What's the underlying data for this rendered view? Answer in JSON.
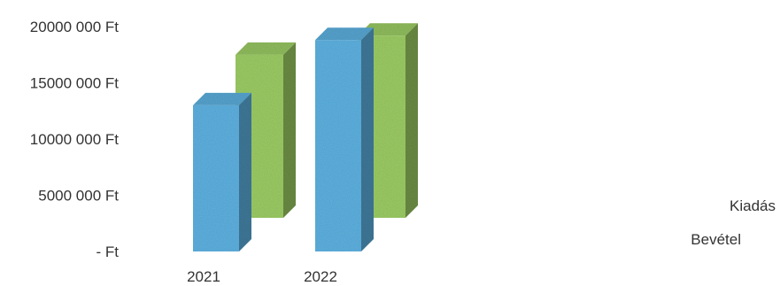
{
  "chart_data": {
    "type": "bar",
    "categories": [
      "2021",
      "2022"
    ],
    "series": [
      {
        "name": "Bevétel",
        "values": [
          13000000,
          18800000
        ],
        "color": "#5fb1e0"
      },
      {
        "name": "Kiadás",
        "values": [
          14500000,
          16200000
        ],
        "color": "#9ccc65"
      }
    ],
    "y_ticks": [
      {
        "value": 0,
        "label": "-   Ft"
      },
      {
        "value": 5000000,
        "label": "5000 000 Ft"
      },
      {
        "value": 10000000,
        "label": "10000 000 Ft"
      },
      {
        "value": 15000000,
        "label": "15000 000 Ft"
      },
      {
        "value": 20000000,
        "label": "20000 000 Ft"
      }
    ],
    "ylim": [
      0,
      20000000
    ],
    "title": "",
    "xlabel": "",
    "ylabel": "",
    "three_d": true,
    "grid": false,
    "legend_placement": "right",
    "legend_order": [
      "Kiadás",
      "Bevétel"
    ]
  }
}
